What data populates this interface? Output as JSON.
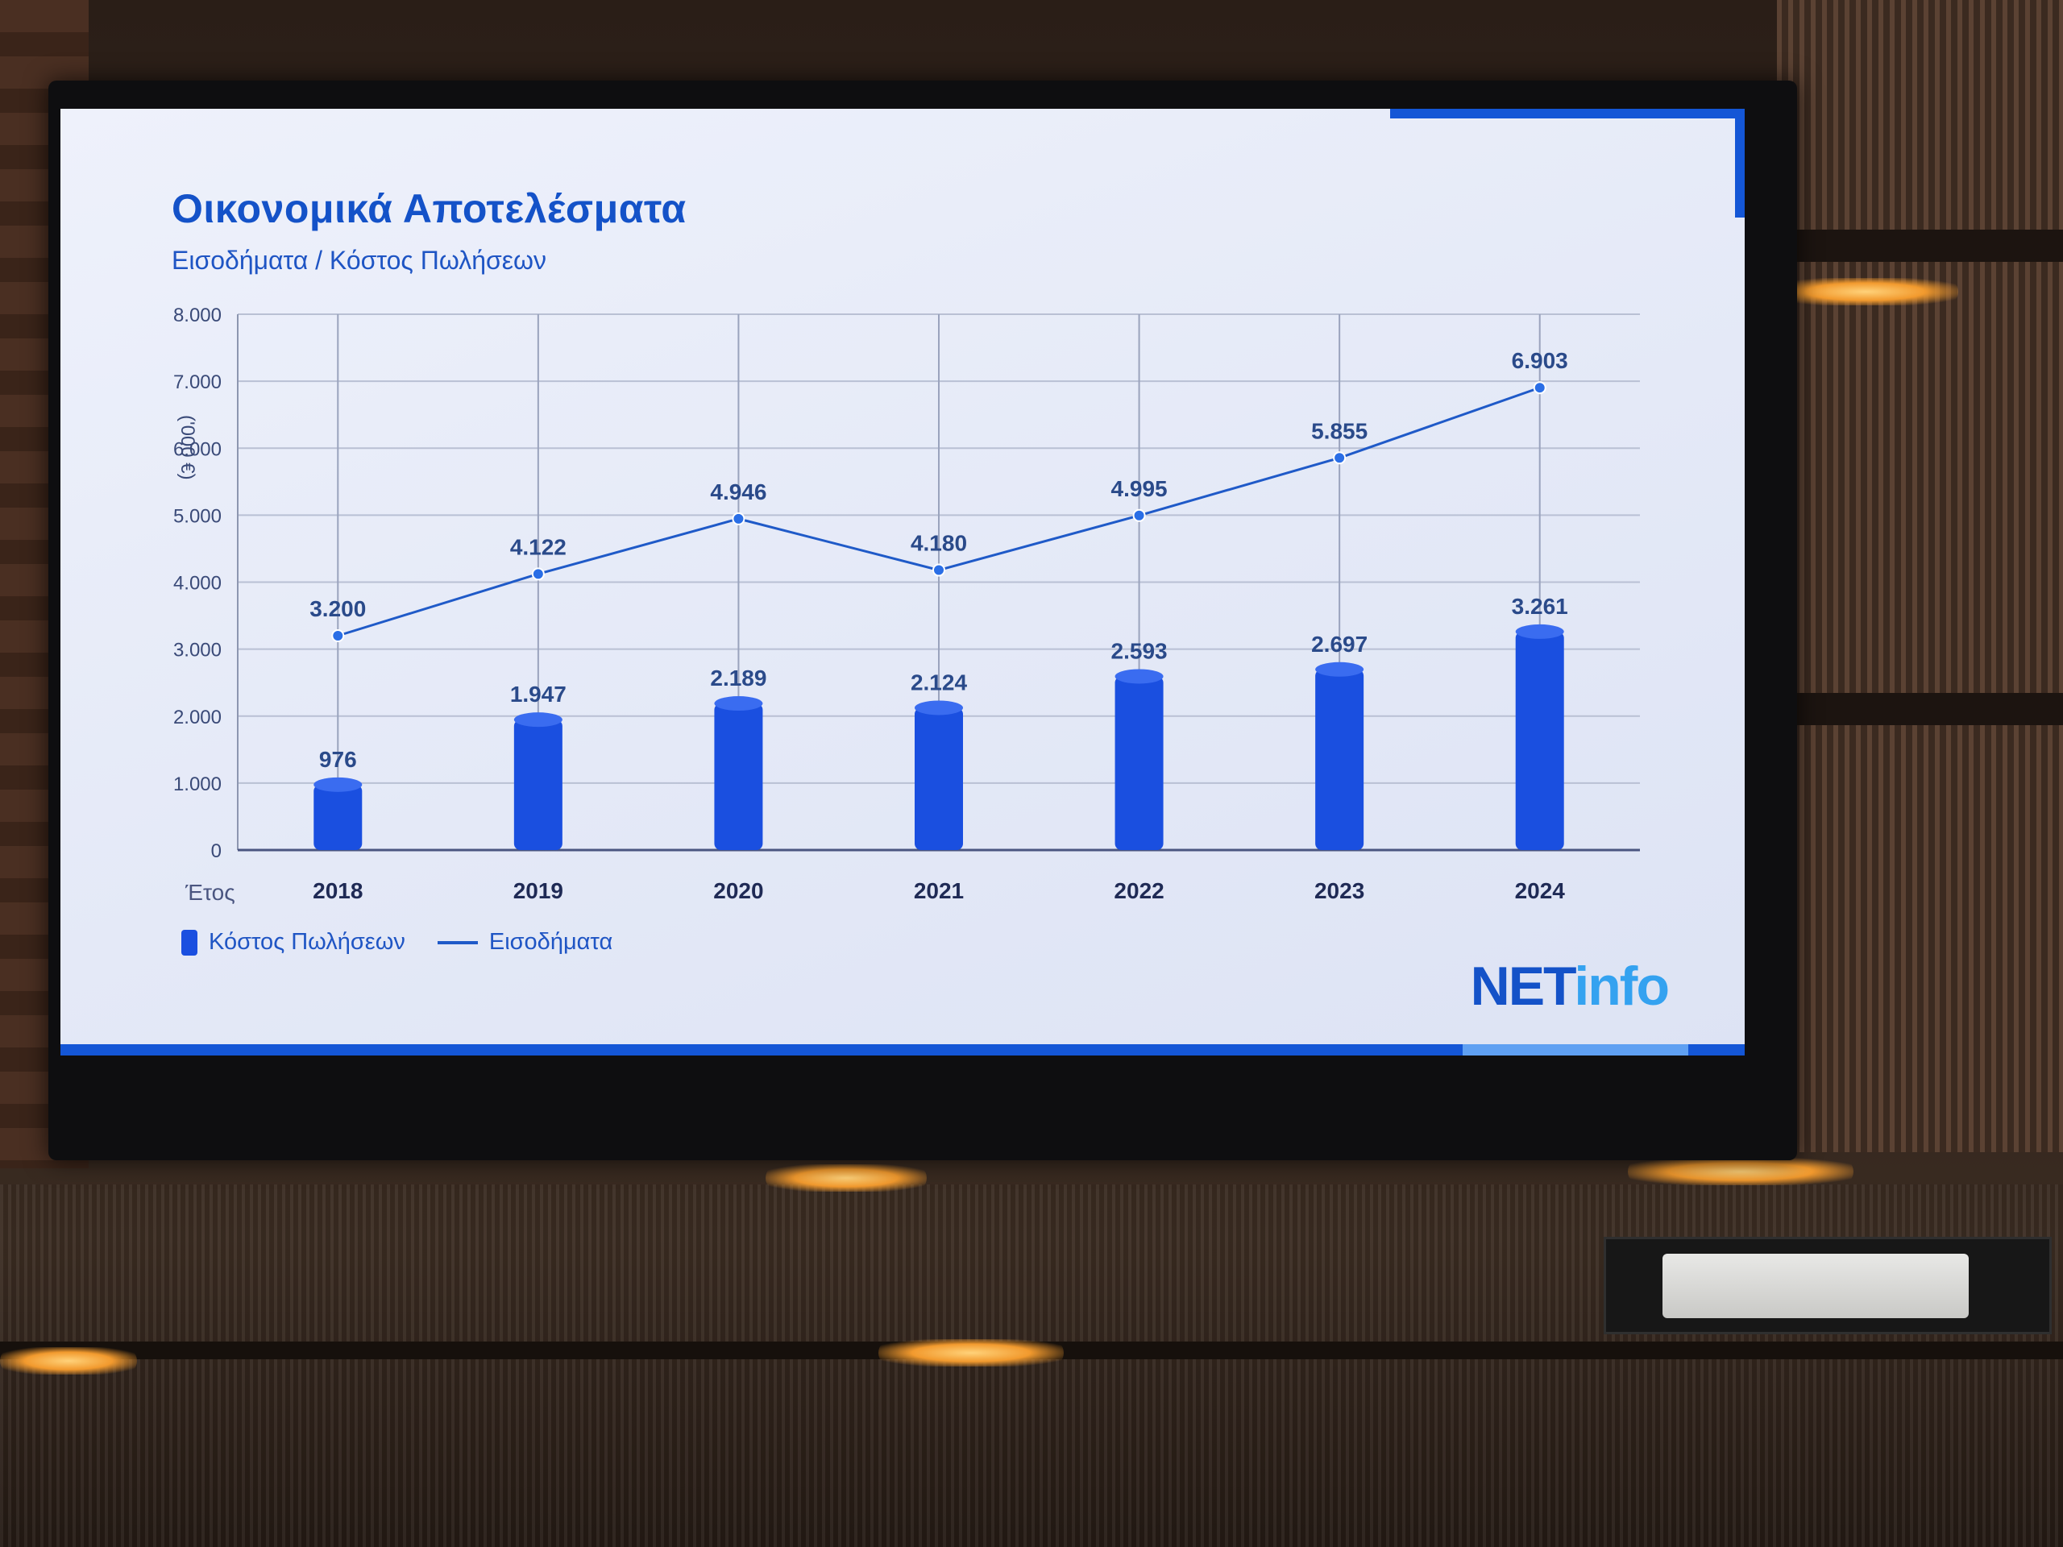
{
  "slide": {
    "title": "Οικονομικά Αποτελέσματα",
    "subtitle": "Εισοδήματα / Κόστος Πωλήσεων",
    "logo_part1": "NET",
    "logo_part2": "info",
    "accent_color": "#1456d6",
    "legend": {
      "bar_label": "Κόστος Πωλήσεων",
      "line_label": "Εισοδήματα"
    }
  },
  "chart_data": {
    "type": "bar",
    "ylabel": "('000 €)",
    "xlabel": "Έτος",
    "categories": [
      "2018",
      "2019",
      "2020",
      "2021",
      "2022",
      "2023",
      "2024"
    ],
    "ylim": [
      0,
      8000
    ],
    "y_ticks": [
      "0",
      "1.000",
      "2.000",
      "3.000",
      "4.000",
      "5.000",
      "6.000",
      "7.000",
      "8.000"
    ],
    "grid": true,
    "legend_position": "bottom-left",
    "series": [
      {
        "name": "Κόστος Πωλήσεων",
        "type": "bar",
        "color": "#1a4fe0",
        "values": [
          976,
          1947,
          2189,
          2124,
          2593,
          2697,
          3261
        ],
        "labels": [
          "976",
          "1.947",
          "2.189",
          "2.124",
          "2.593",
          "2.697",
          "3.261"
        ]
      },
      {
        "name": "Εισοδήματα",
        "type": "line",
        "color": "#1f5ac8",
        "values": [
          3200,
          4122,
          4946,
          4180,
          4995,
          5855,
          6903
        ],
        "labels": [
          "3.200",
          "4.122",
          "4.946",
          "4.180",
          "4.995",
          "5.855",
          "6.903"
        ]
      }
    ]
  }
}
